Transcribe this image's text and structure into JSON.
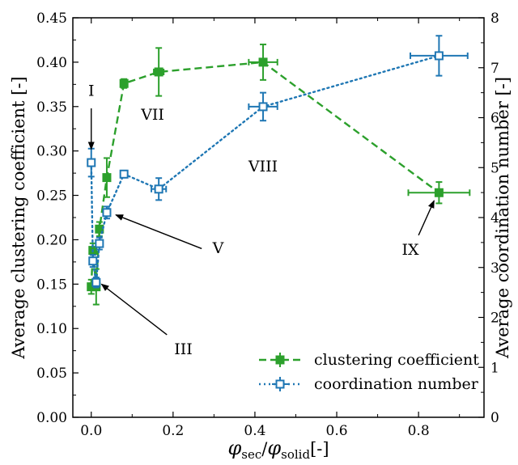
{
  "chart_data": {
    "type": "line",
    "xlabel": {
      "phi": "φ",
      "sub1": "sec",
      "sep": "/",
      "phi2": "φ",
      "sub2": "solid",
      "unit": "[-]"
    },
    "ylabel_left": "Average clustering coefficient [-]",
    "ylabel_right": "Average coordination number [-]",
    "xlim": [
      -0.045,
      0.96
    ],
    "ylim_left": [
      0,
      0.45
    ],
    "ylim_right": [
      0,
      8
    ],
    "x_ticks": [
      0.0,
      0.2,
      0.4,
      0.6,
      0.8
    ],
    "x_tick_labels": [
      "0.0",
      "0.2",
      "0.4",
      "0.6",
      "0.8"
    ],
    "y_left_ticks": [
      0,
      0.05,
      0.1,
      0.15,
      0.2,
      0.25,
      0.3,
      0.35,
      0.4,
      0.45
    ],
    "y_left_tick_labels": [
      "0.00",
      "0.05",
      "0.10",
      "0.15",
      "0.20",
      "0.25",
      "0.30",
      "0.35",
      "0.40",
      "0.45"
    ],
    "y_right_ticks": [
      0,
      1,
      2,
      3,
      4,
      5,
      6,
      7,
      8
    ],
    "y_right_tick_labels": [
      "0",
      "1",
      "2",
      "3",
      "4",
      "5",
      "6",
      "7",
      "8"
    ],
    "series": [
      {
        "name": "clustering coefficient",
        "axis": "left",
        "color": "#2ca02c",
        "line_style": "dashed",
        "marker": "filled-square",
        "points": [
          {
            "x": 0.0,
            "y": 0.147,
            "yerr": 0.008,
            "xerr": 0.004
          },
          {
            "x": 0.004,
            "y": 0.188,
            "yerr": 0.008,
            "xerr": 0.003
          },
          {
            "x": 0.012,
            "y": 0.147,
            "yerr": 0.02,
            "xerr": 0.004
          },
          {
            "x": 0.02,
            "y": 0.212,
            "yerr": 0.008,
            "xerr": 0.005
          },
          {
            "x": 0.038,
            "y": 0.27,
            "yerr": 0.022,
            "xerr": 0.006
          },
          {
            "x": 0.08,
            "y": 0.376,
            "yerr": 0.005,
            "xerr": 0.007
          },
          {
            "x": 0.165,
            "y": 0.389,
            "yerr": 0.027,
            "xerr": 0.012
          },
          {
            "x": 0.42,
            "y": 0.4,
            "yerr": 0.02,
            "xerr": 0.035
          },
          {
            "x": 0.85,
            "y": 0.253,
            "yerr": 0.012,
            "xerr": 0.075
          }
        ]
      },
      {
        "name": "coordination number",
        "axis": "right",
        "color": "#1f77b4",
        "line_style": "dotted",
        "marker": "open-square",
        "points": [
          {
            "x": 0.0,
            "y": 5.1,
            "yerr": 0.28,
            "xerr": 0.004
          },
          {
            "x": 0.004,
            "y": 3.13,
            "yerr": 0.12,
            "xerr": 0.004
          },
          {
            "x": 0.012,
            "y": 2.7,
            "yerr": 0.1,
            "xerr": 0.005
          },
          {
            "x": 0.02,
            "y": 3.48,
            "yerr": 0.12,
            "xerr": 0.006
          },
          {
            "x": 0.038,
            "y": 4.1,
            "yerr": 0.12,
            "xerr": 0.008
          },
          {
            "x": 0.08,
            "y": 4.87,
            "yerr": 0.07,
            "xerr": 0.008
          },
          {
            "x": 0.165,
            "y": 4.57,
            "yerr": 0.22,
            "xerr": 0.018
          },
          {
            "x": 0.42,
            "y": 6.22,
            "yerr": 0.28,
            "xerr": 0.035
          },
          {
            "x": 0.85,
            "y": 7.24,
            "yerr": 0.4,
            "xerr": 0.07
          }
        ]
      }
    ],
    "annotations": [
      {
        "text": "I",
        "label_at": [
          0.0,
          0.362
        ],
        "arrow_from": [
          0.0,
          0.348
        ],
        "arrow_to": [
          0.0,
          0.302
        ]
      },
      {
        "text": "III",
        "label_at": [
          0.225,
          0.071
        ],
        "arrow_from": [
          0.185,
          0.093
        ],
        "arrow_to": [
          0.025,
          0.15
        ]
      },
      {
        "text": "V",
        "label_at": [
          0.31,
          0.185
        ],
        "arrow_from": [
          0.27,
          0.19
        ],
        "arrow_to": [
          0.06,
          0.228
        ]
      },
      {
        "text": "VII",
        "label_at": [
          0.15,
          0.335
        ],
        "arrow_from": null,
        "arrow_to": null
      },
      {
        "text": "VIII",
        "label_at": [
          0.42,
          0.277
        ],
        "arrow_from": null,
        "arrow_to": null
      },
      {
        "text": "IX",
        "label_at": [
          0.78,
          0.183
        ],
        "arrow_from": [
          0.8,
          0.205
        ],
        "arrow_to": [
          0.838,
          0.244
        ]
      }
    ],
    "legend_position": "lower-right",
    "grid": false
  }
}
